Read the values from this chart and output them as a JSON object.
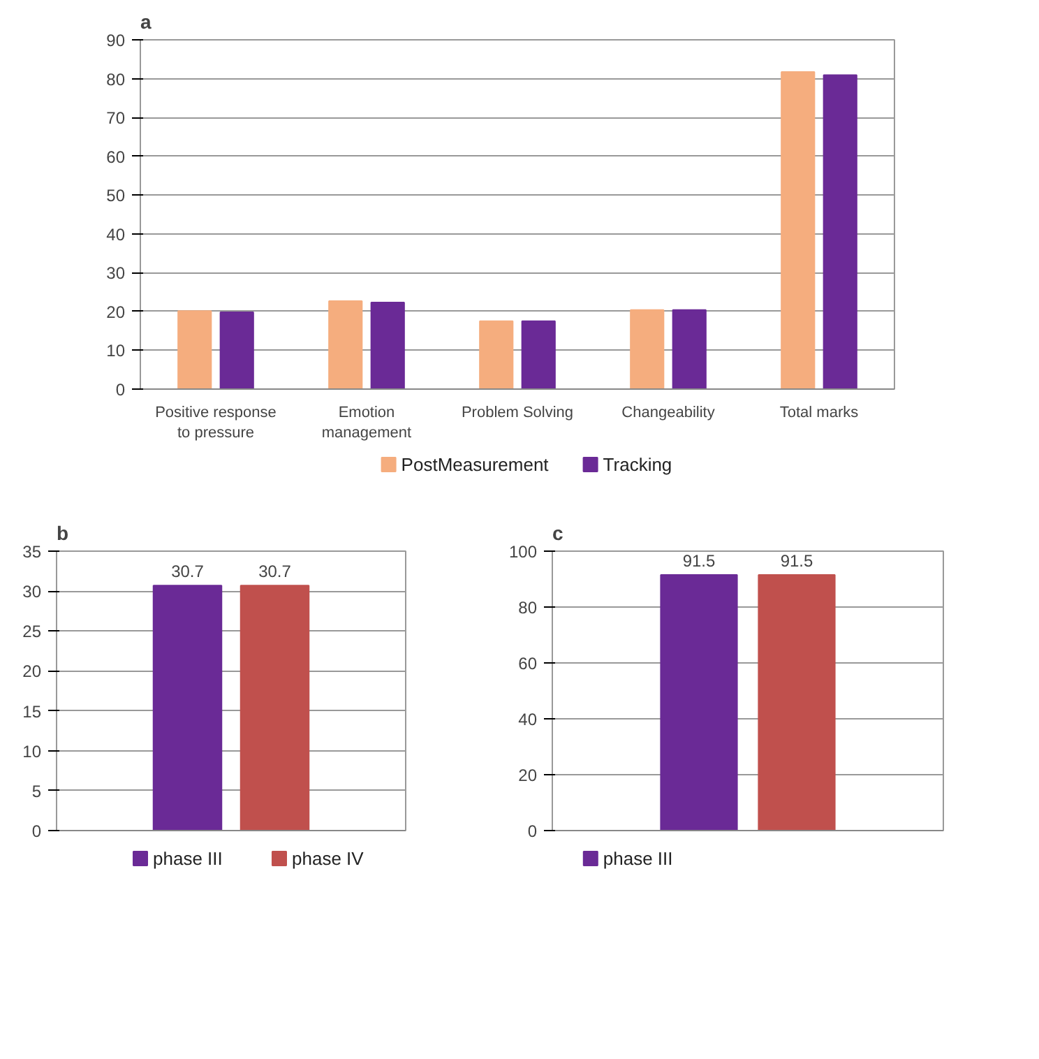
{
  "chart_data": [
    {
      "type": "bar",
      "title": "a",
      "categories": [
        "Positive response to pressure",
        "Emotion management",
        "Problem Solving",
        "Changeability",
        "Total marks"
      ],
      "series": [
        {
          "name": "PostMeasurement",
          "color": "#f5ad7e",
          "values": [
            20.1,
            22.7,
            17.5,
            20.4,
            81.7
          ]
        },
        {
          "name": "Tracking",
          "color": "#6a2a96",
          "values": [
            19.8,
            22.3,
            17.5,
            20.4,
            80.9
          ]
        }
      ],
      "ylim": [
        0,
        90
      ],
      "yticks": [
        0,
        10,
        20,
        30,
        40,
        50,
        60,
        70,
        80,
        90
      ],
      "grid": "y",
      "legend": "bottom"
    },
    {
      "type": "bar",
      "title": "b",
      "categories": [
        null
      ],
      "series": [
        {
          "name": "phase III",
          "color": "#6a2a96",
          "values": [
            30.7
          ]
        },
        {
          "name": "phase IV",
          "color": "#c0504d",
          "values": [
            30.7
          ]
        }
      ],
      "ylim": [
        0,
        35
      ],
      "yticks": [
        0,
        5,
        10,
        15,
        20,
        25,
        30,
        35
      ],
      "grid": "y",
      "legend": "bottom",
      "data_labels": true,
      "tick_labels": "y"
    },
    {
      "type": "bar",
      "title": "c",
      "categories": [
        null
      ],
      "series": [
        {
          "name": "phase III",
          "color": "#6a2a96",
          "values": [
            91.5
          ]
        },
        {
          "color": "#c0504d",
          "values": [
            91.5
          ]
        }
      ],
      "ylim": [
        0,
        100
      ],
      "yticks": [
        0,
        20,
        40,
        60,
        80,
        100
      ],
      "grid": "y",
      "legend": "bottom left",
      "data_labels": true,
      "tick_labels": "y"
    }
  ]
}
